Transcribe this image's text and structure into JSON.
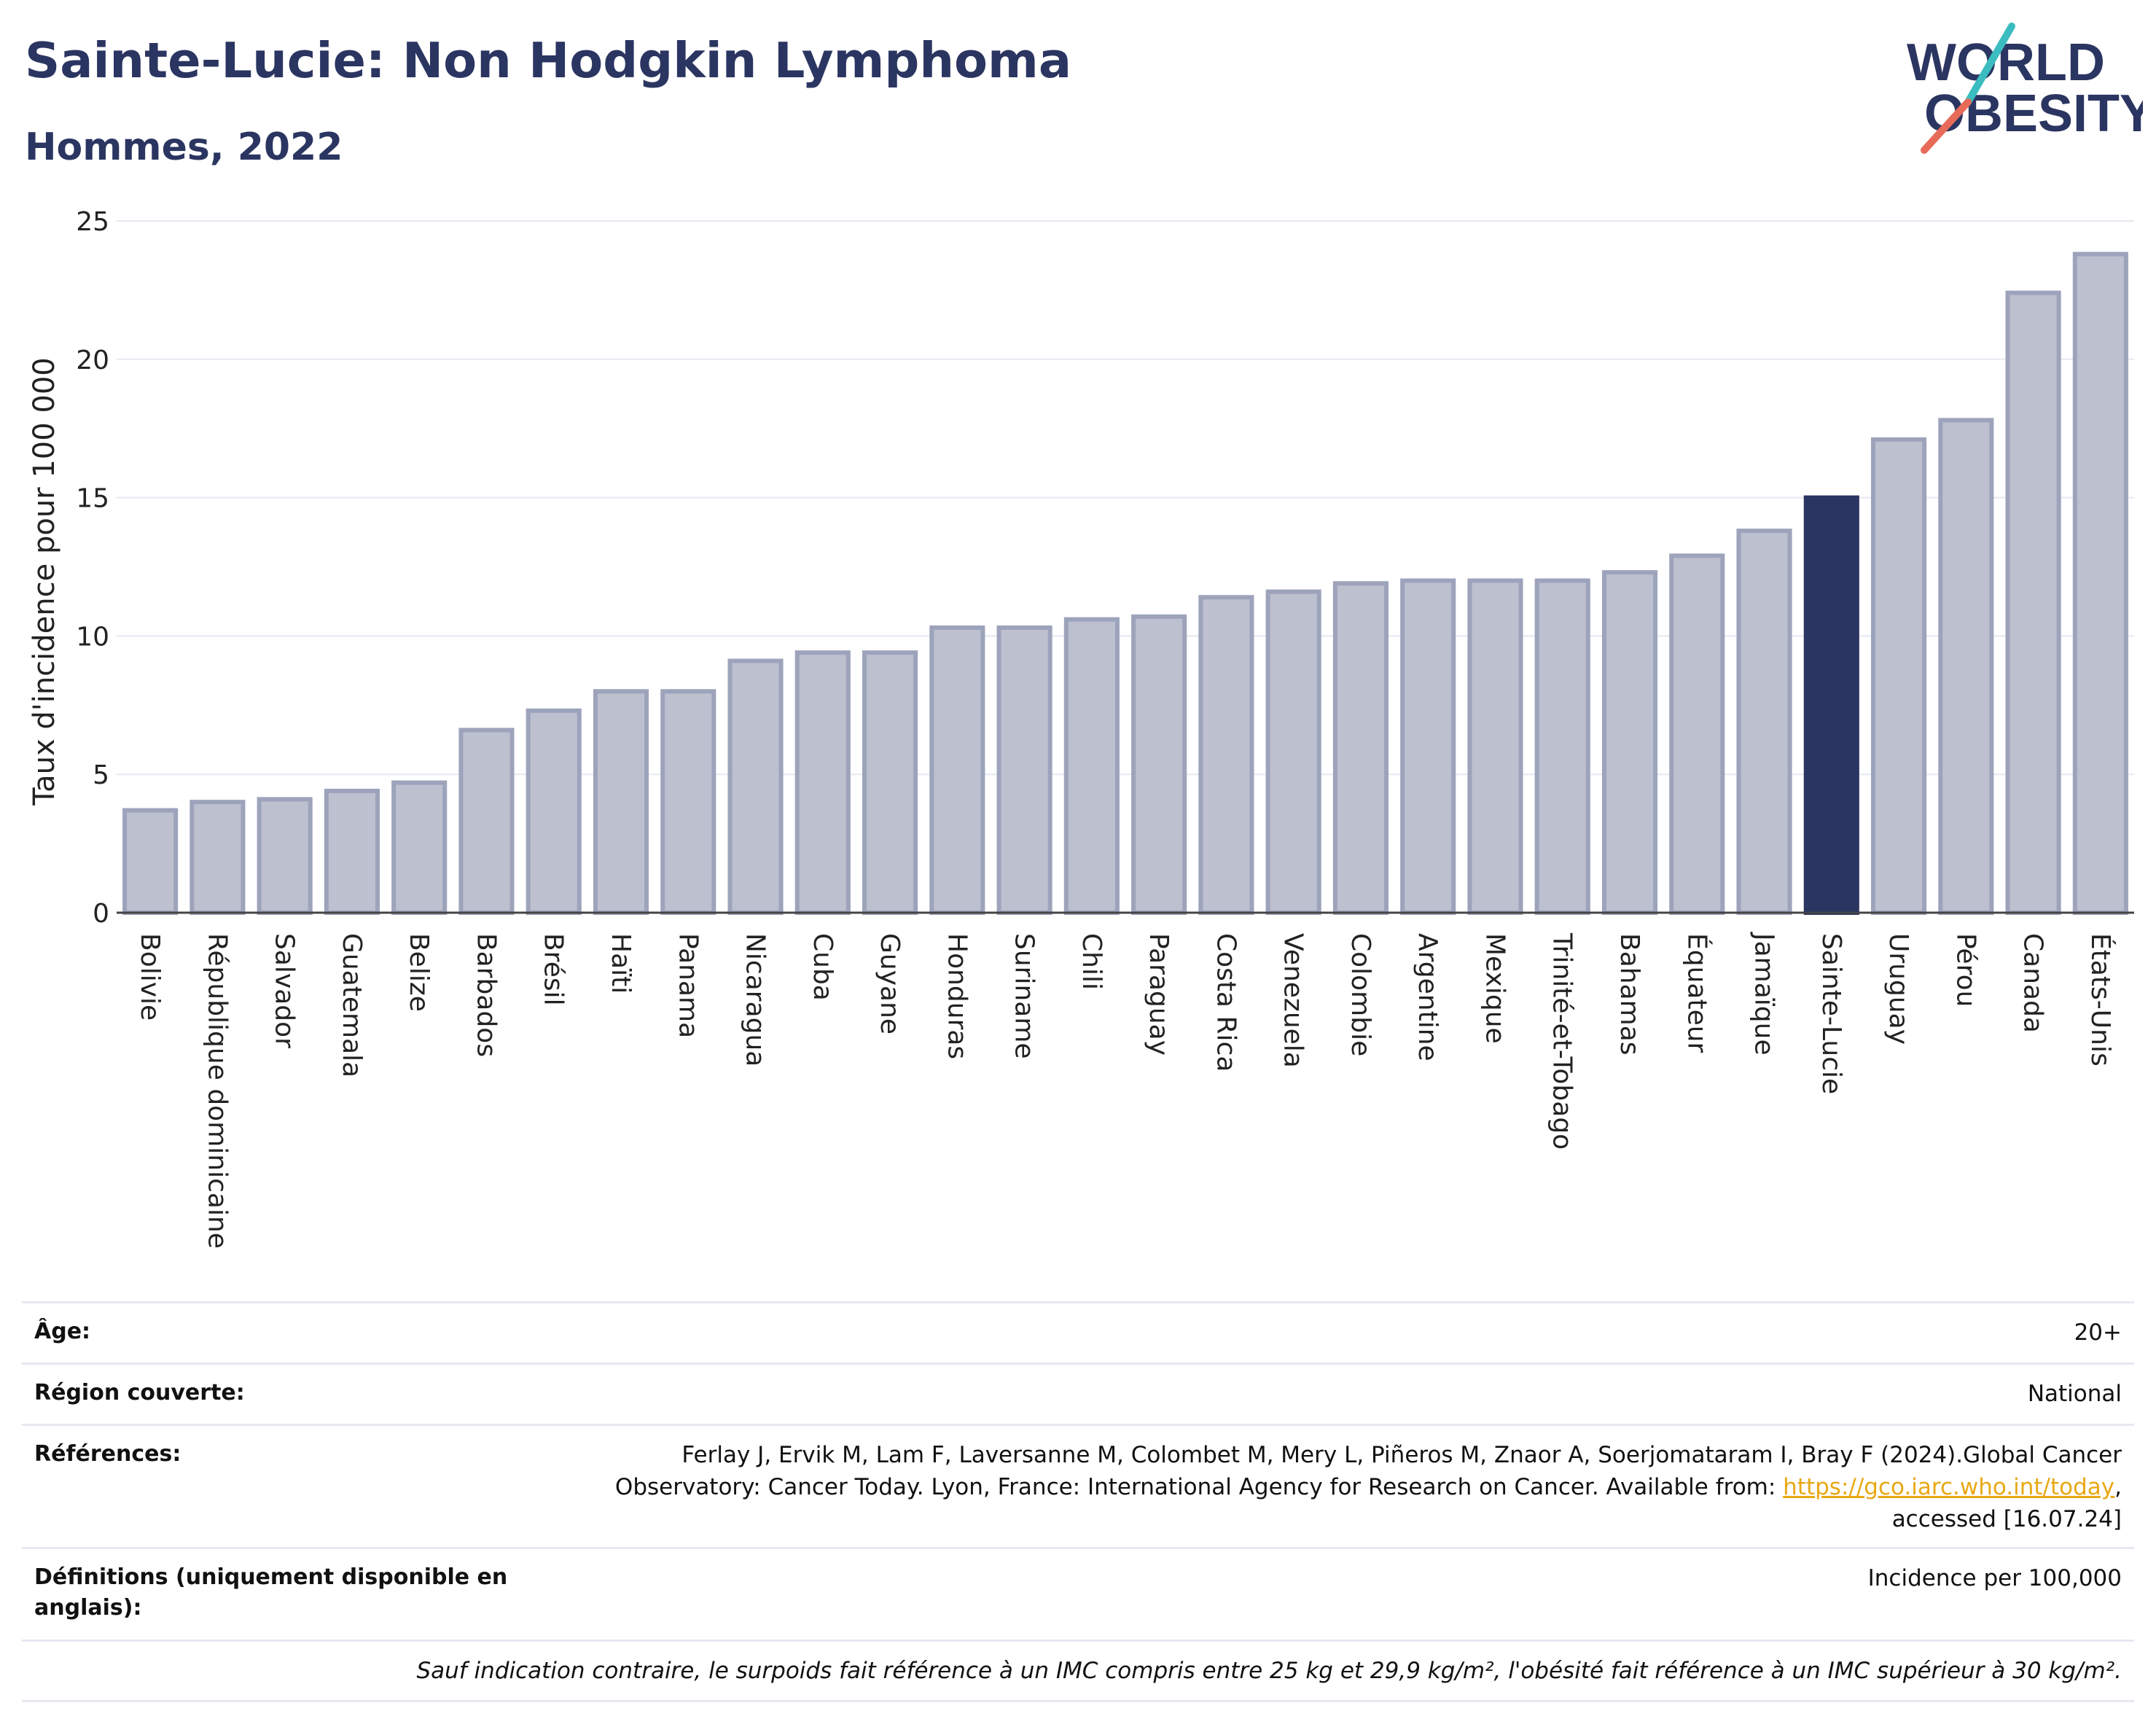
{
  "header": {
    "title": "Sainte-Lucie: Non Hodgkin Lymphoma",
    "subtitle": "Hommes, 2022"
  },
  "logo": {
    "line1": "WORLD",
    "line2": "OBESITY"
  },
  "colors": {
    "bar": "#bcc0cf",
    "bar_stroke": "#9da3bb",
    "highlight": "#2b3561",
    "grid": "#e6e8f0"
  },
  "chart_data": {
    "type": "bar",
    "ylabel": "Taux d'incidence pour 100 000",
    "ylim": [
      0,
      25
    ],
    "yticks": [
      0,
      5,
      10,
      15,
      20,
      25
    ],
    "grid": true,
    "highlight": "Sainte-Lucie",
    "categories": [
      "Bolivie",
      "République dominicaine",
      "Salvador",
      "Guatemala",
      "Belize",
      "Barbados",
      "Brésil",
      "Haïti",
      "Panama",
      "Nicaragua",
      "Cuba",
      "Guyane",
      "Honduras",
      "Suriname",
      "Chili",
      "Paraguay",
      "Costa Rica",
      "Venezuela",
      "Colombie",
      "Argentine",
      "Mexique",
      "Trinité-et-Tobago",
      "Bahamas",
      "Équateur",
      "Jamaïque",
      "Sainte-Lucie",
      "Uruguay",
      "Pérou",
      "Canada",
      "États-Unis"
    ],
    "values": [
      3.7,
      4.0,
      4.1,
      4.4,
      4.7,
      6.6,
      7.3,
      8.0,
      8.0,
      9.1,
      9.4,
      9.4,
      10.3,
      10.3,
      10.6,
      10.7,
      11.4,
      11.6,
      11.9,
      12.0,
      12.0,
      12.0,
      12.3,
      12.9,
      13.8,
      15.0,
      17.1,
      17.8,
      22.4,
      23.8
    ]
  },
  "info": {
    "age_label": "Âge:",
    "age_value": "20+",
    "region_label": "Région couverte:",
    "region_value": "National",
    "refs_label": "Références:",
    "refs_line1": "Ferlay J, Ervik M, Lam F, Laversanne M, Colombet M, Mery L, Piñeros M, Znaor A, Soerjomataram I, Bray F (2024).Global Cancer",
    "refs_line2": "Observatory: Cancer Today. Lyon, France: International Agency for Research on Cancer. Available from: ",
    "refs_link": "https://gco.iarc.who.int/today",
    "refs_line2_end": ",",
    "refs_line3": "accessed [16.07.24]",
    "defs_label": "Définitions (uniquement disponible en anglais):",
    "defs_value": "Incidence per 100,000",
    "note": "Sauf indication contraire, le surpoids fait référence à un IMC compris entre 25 kg et 29,9 kg/m², l'obésité fait référence à un IMC supérieur à 30 kg/m²."
  }
}
